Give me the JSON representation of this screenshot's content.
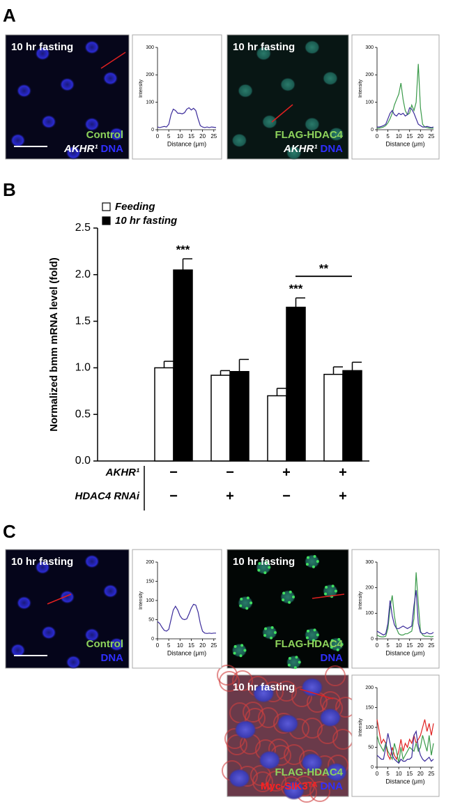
{
  "panel_labels": [
    "A",
    "B",
    "C"
  ],
  "images": [
    {
      "title": "10 hr fasting",
      "lines": [
        [
          {
            "text": "Control",
            "color": "#8ed45c"
          }
        ],
        [
          {
            "text": "AKHR¹",
            "color": "#ffffff"
          },
          {
            "text": "DNA",
            "color": "#2f2fff"
          }
        ]
      ]
    },
    {
      "title": "10 hr fasting",
      "lines": [
        [
          {
            "text": "FLAG-HDAC4",
            "color": "#8ed45c"
          }
        ],
        [
          {
            "text": "AKHR¹",
            "color": "#ffffff"
          },
          {
            "text": "DNA",
            "color": "#2f2fff"
          }
        ]
      ]
    },
    {
      "title": "10 hr fasting",
      "lines": [
        [
          {
            "text": "Control",
            "color": "#8ed45c"
          }
        ],
        [
          {
            "text": "DNA",
            "color": "#2f2fff"
          }
        ]
      ]
    },
    {
      "title": "10 hr fasting",
      "lines": [
        [
          {
            "text": "FLAG-HDAC4",
            "color": "#8ed45c"
          }
        ],
        [
          {
            "text": "DNA",
            "color": "#2f2fff"
          }
        ]
      ]
    },
    {
      "title": "10 hr fasting",
      "lines": [
        [
          {
            "text": "FLAG-HDAC4",
            "color": "#8ed45c"
          }
        ],
        [
          {
            "text": "Myc-SIK3ᵀᴬ",
            "color": "#ff2020"
          },
          {
            "text": "DNA",
            "color": "#2f2fff"
          }
        ]
      ]
    }
  ],
  "chart_data": [
    {
      "type": "line",
      "x_label": "Distance (μm)",
      "y_label": "Intensity",
      "x": [
        0,
        1,
        2,
        3,
        4,
        5,
        6,
        7,
        8,
        9,
        10,
        11,
        12,
        13,
        14,
        15,
        16,
        17,
        18,
        19,
        20,
        21,
        22,
        23,
        24,
        25,
        26
      ],
      "xlim": [
        0,
        26
      ],
      "xticks": [
        0,
        5,
        10,
        15,
        20,
        25
      ],
      "ylim": [
        0,
        300
      ],
      "yticks": [
        0,
        100,
        200,
        300
      ],
      "series": [
        {
          "name": "DNA",
          "color": "#3a2a9a",
          "values": [
            10,
            8,
            10,
            12,
            10,
            20,
            55,
            75,
            70,
            60,
            60,
            58,
            62,
            75,
            80,
            72,
            78,
            70,
            40,
            15,
            10,
            8,
            10,
            8,
            10,
            9,
            8
          ]
        }
      ]
    },
    {
      "type": "line",
      "x_label": "Distance (μm)",
      "y_label": "Intensity",
      "x": [
        0,
        1,
        2,
        3,
        4,
        5,
        6,
        7,
        8,
        9,
        10,
        11,
        12,
        13,
        14,
        15,
        16,
        17,
        18,
        19,
        20,
        21,
        22,
        23,
        24,
        25,
        26
      ],
      "xlim": [
        0,
        26
      ],
      "xticks": [
        0,
        5,
        10,
        15,
        20,
        25
      ],
      "ylim": [
        0,
        300
      ],
      "yticks": [
        0,
        100,
        200,
        300
      ],
      "series": [
        {
          "name": "FLAG-HDAC4",
          "color": "#3a9a4a",
          "values": [
            5,
            6,
            8,
            10,
            15,
            25,
            40,
            60,
            90,
            110,
            130,
            170,
            110,
            70,
            55,
            60,
            90,
            70,
            100,
            240,
            80,
            20,
            10,
            8,
            6,
            6,
            5
          ]
        },
        {
          "name": "DNA",
          "color": "#3a2a9a",
          "values": [
            10,
            10,
            12,
            15,
            20,
            40,
            60,
            70,
            55,
            50,
            60,
            55,
            60,
            50,
            55,
            80,
            75,
            60,
            40,
            20,
            15,
            10,
            10,
            12,
            10,
            8,
            10
          ]
        }
      ]
    },
    {
      "type": "bar",
      "y_label": "Normalized bmm mRNA level (fold)",
      "categories": [
        null,
        null,
        null,
        null
      ],
      "ylim": [
        0,
        2.5
      ],
      "yticks": [
        {
          "value": 0,
          "label": "0.0"
        },
        0.5,
        {
          "value": 1,
          "label": "1.0"
        },
        1.5,
        {
          "value": 2,
          "label": "2.0"
        },
        2.5
      ],
      "series": [
        {
          "name": "Feeding",
          "color": "#ffffff",
          "values": [
            1.0,
            0.92,
            0.7,
            0.93
          ],
          "errors": [
            0.07,
            0.05,
            0.08,
            0.08
          ]
        },
        {
          "name": "10 hr fasting",
          "color": "#000000",
          "values": [
            2.05,
            0.96,
            1.65,
            0.97
          ],
          "errors": [
            0.12,
            0.13,
            0.1,
            0.09
          ]
        }
      ],
      "annotations": [
        "***",
        "***",
        "**"
      ],
      "conditions": [
        {
          "label": "AKHR¹",
          "values": [
            "−",
            "−",
            "+",
            "+"
          ]
        },
        {
          "label": "HDAC4 RNAi",
          "values": [
            "−",
            "+",
            "−",
            "+"
          ]
        }
      ]
    },
    {
      "type": "line",
      "x_label": "Distance (μm)",
      "y_label": "Intensity",
      "x": [
        0,
        1,
        2,
        3,
        4,
        5,
        6,
        7,
        8,
        9,
        10,
        11,
        12,
        13,
        14,
        15,
        16,
        17,
        18,
        19,
        20,
        21,
        22,
        23,
        24,
        25,
        26
      ],
      "xlim": [
        0,
        26
      ],
      "xticks": [
        0,
        5,
        10,
        15,
        20,
        25
      ],
      "ylim": [
        0,
        200
      ],
      "yticks": [
        0,
        50,
        100,
        150,
        200
      ],
      "series": [
        {
          "name": "DNA",
          "color": "#3a2a9a",
          "values": [
            45,
            40,
            30,
            22,
            20,
            25,
            50,
            75,
            85,
            75,
            60,
            52,
            50,
            52,
            65,
            80,
            90,
            88,
            70,
            40,
            20,
            15,
            14,
            15,
            14,
            15,
            15
          ]
        }
      ]
    },
    {
      "type": "line",
      "x_label": "Distance (μm)",
      "y_label": "Intensity",
      "x": [
        0,
        1,
        2,
        3,
        4,
        5,
        6,
        7,
        8,
        9,
        10,
        11,
        12,
        13,
        14,
        15,
        16,
        17,
        18,
        19,
        20,
        21,
        22,
        23,
        24,
        25,
        26
      ],
      "xlim": [
        0,
        26
      ],
      "xticks": [
        0,
        5,
        10,
        15,
        20,
        25
      ],
      "ylim": [
        0,
        300
      ],
      "yticks": [
        0,
        100,
        200,
        300
      ],
      "series": [
        {
          "name": "FLAG-HDAC4",
          "color": "#3a9a4a",
          "values": [
            15,
            10,
            8,
            8,
            10,
            40,
            120,
            170,
            90,
            40,
            20,
            15,
            15,
            20,
            20,
            25,
            30,
            80,
            260,
            140,
            30,
            15,
            10,
            10,
            10,
            8,
            10
          ]
        },
        {
          "name": "DNA",
          "color": "#3a2a9a",
          "values": [
            30,
            25,
            20,
            15,
            20,
            60,
            150,
            90,
            55,
            40,
            40,
            45,
            50,
            45,
            40,
            45,
            50,
            130,
            190,
            60,
            25,
            20,
            20,
            25,
            20,
            20,
            25
          ]
        }
      ]
    },
    {
      "type": "line",
      "x_label": "Distance (μm)",
      "y_label": "Intensity",
      "x": [
        0,
        1,
        2,
        3,
        4,
        5,
        6,
        7,
        8,
        9,
        10,
        11,
        12,
        13,
        14,
        15,
        16,
        17,
        18,
        19,
        20,
        21,
        22,
        23,
        24,
        25,
        26
      ],
      "xlim": [
        0,
        26
      ],
      "xticks": [
        0,
        5,
        10,
        15,
        20,
        25
      ],
      "ylim": [
        0,
        200
      ],
      "yticks": [
        0,
        50,
        100,
        150,
        200
      ],
      "series": [
        {
          "name": "Myc-SIK3ᵀᴬ",
          "color": "#e02020",
          "values": [
            120,
            90,
            60,
            70,
            60,
            30,
            20,
            50,
            30,
            20,
            40,
            70,
            40,
            60,
            50,
            70,
            60,
            80,
            60,
            70,
            80,
            100,
            120,
            90,
            110,
            80,
            110
          ]
        },
        {
          "name": "FLAG-HDAC4",
          "color": "#3a9a4a",
          "values": [
            80,
            60,
            50,
            40,
            60,
            40,
            30,
            20,
            60,
            40,
            10,
            50,
            20,
            30,
            40,
            50,
            45,
            40,
            60,
            40,
            50,
            80,
            60,
            40,
            80,
            30,
            60
          ]
        },
        {
          "name": "DNA",
          "color": "#3a2a9a",
          "values": [
            30,
            25,
            20,
            20,
            50,
            85,
            60,
            30,
            20,
            15,
            10,
            20,
            15,
            15,
            20,
            20,
            25,
            80,
            90,
            50,
            30,
            20,
            15,
            20,
            25,
            15,
            20
          ]
        }
      ]
    }
  ]
}
